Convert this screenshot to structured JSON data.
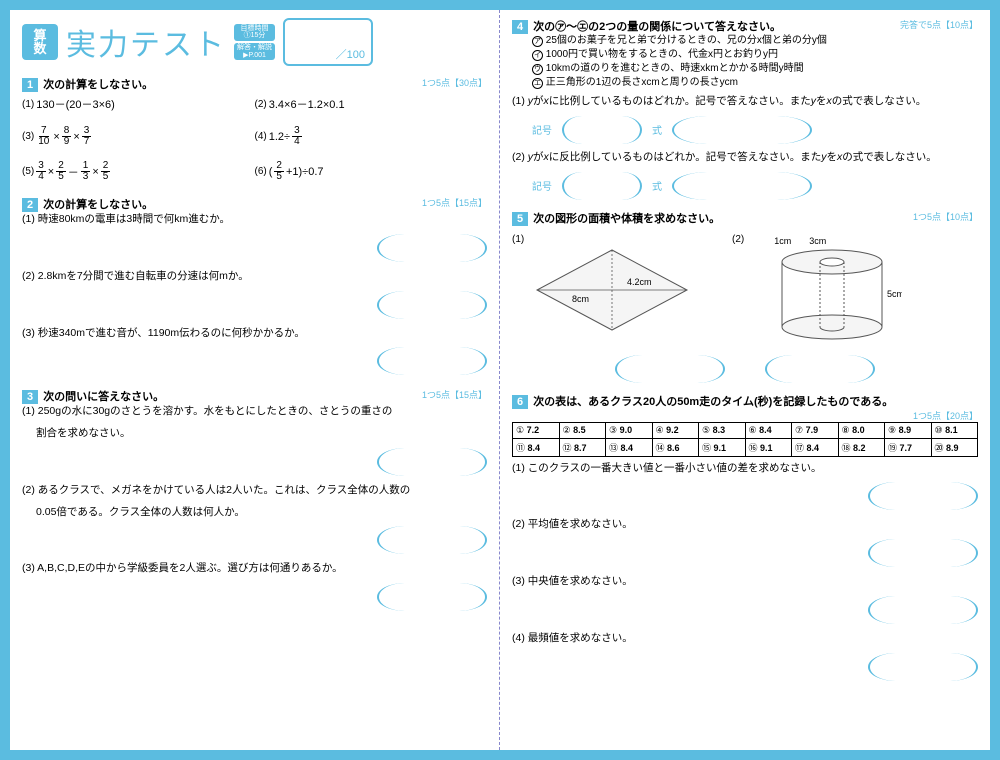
{
  "subject": "算数",
  "title": "実力テスト",
  "time_label": "目標時間",
  "time_value": "①15分",
  "answer_label": "解答・解説",
  "answer_page": "▶P.001",
  "score_denom": "／100",
  "s1": {
    "num": "1",
    "title": "次の計算をしなさい。",
    "pts": "1つ5点【30点】"
  },
  "s1p": [
    "130－(20－3×6)",
    "3.4×6－1.2×0.1",
    "",
    "1.2÷",
    "",
    "(  +1)÷0.7"
  ],
  "s2": {
    "num": "2",
    "title": "次の計算をしなさい。",
    "pts": "1つ5点【15点】",
    "q1": "(1) 時速80kmの電車は3時間で何km進むか。",
    "q2": "(2) 2.8kmを7分間で進む自転車の分速は何mか。",
    "q3": "(3) 秒速340mで進む音が、1190m伝わるのに何秒かかるか。"
  },
  "s3": {
    "num": "3",
    "title": "次の問いに答えなさい。",
    "pts": "1つ5点【15点】",
    "q1a": "(1) 250gの水に30gのさとうを溶かす。水をもとにしたときの、さとうの重さの",
    "q1b": "割合を求めなさい。",
    "q2a": "(2) あるクラスで、メガネをかけている人は2人いた。これは、クラス全体の人数の",
    "q2b": "0.05倍である。クラス全体の人数は何人か。",
    "q3": "(3) A,B,C,D,Eの中から学級委員を2人選ぶ。選び方は何通りあるか。"
  },
  "s4": {
    "num": "4",
    "title": "次の㋐～㋓の2つの量の関係について答えなさい。",
    "pts": "完答で5点【10点】",
    "a": "25個のお菓子を兄と弟で分けるときの、兄の分x個と弟の分y個",
    "b": "1000円で買い物をするときの、代金x円とお釣りy円",
    "c": "10kmの道のりを進むときの、時速xkmとかかる時間y時間",
    "d": "正三角形の1辺の長さxcmと周りの長さycm",
    "q1": "(1) yがxに比例しているものはどれか。記号で答えなさい。またyをxの式で表しなさい。",
    "q2": "(2) yがxに反比例しているものはどれか。記号で答えなさい。またyをxの式で表しなさい。",
    "label_sign": "記号",
    "label_formula": "式"
  },
  "s5": {
    "num": "5",
    "title": "次の図形の面積や体積を求めなさい。",
    "pts": "1つ5点【10点】",
    "l1": "(1)",
    "l2": "(2)",
    "d1": "4.2cm",
    "d2": "8cm",
    "d3": "1cm",
    "d4": "3cm",
    "d5": "5cm"
  },
  "s6": {
    "num": "6",
    "title": "次の表は、あるクラス20人の50m走のタイム(秒)を記録したものである。",
    "pts": "1つ5点【20点】",
    "data": [
      [
        "①",
        "7.2"
      ],
      [
        "②",
        "8.5"
      ],
      [
        "③",
        "9.0"
      ],
      [
        "④",
        "9.2"
      ],
      [
        "⑤",
        "8.3"
      ],
      [
        "⑥",
        "8.4"
      ],
      [
        "⑦",
        "7.9"
      ],
      [
        "⑧",
        "8.0"
      ],
      [
        "⑨",
        "8.9"
      ],
      [
        "⑩",
        "8.1"
      ],
      [
        "⑪",
        "8.4"
      ],
      [
        "⑫",
        "8.7"
      ],
      [
        "⑬",
        "8.4"
      ],
      [
        "⑭",
        "8.6"
      ],
      [
        "⑮",
        "9.1"
      ],
      [
        "⑯",
        "9.1"
      ],
      [
        "⑰",
        "8.4"
      ],
      [
        "⑱",
        "8.2"
      ],
      [
        "⑲",
        "7.7"
      ],
      [
        "⑳",
        "8.9"
      ]
    ],
    "q1": "(1) このクラスの一番大きい値と一番小さい値の差を求めなさい。",
    "q2": "(2) 平均値を求めなさい。",
    "q3": "(3) 中央値を求めなさい。",
    "q4": "(4) 最頻値を求めなさい。"
  }
}
